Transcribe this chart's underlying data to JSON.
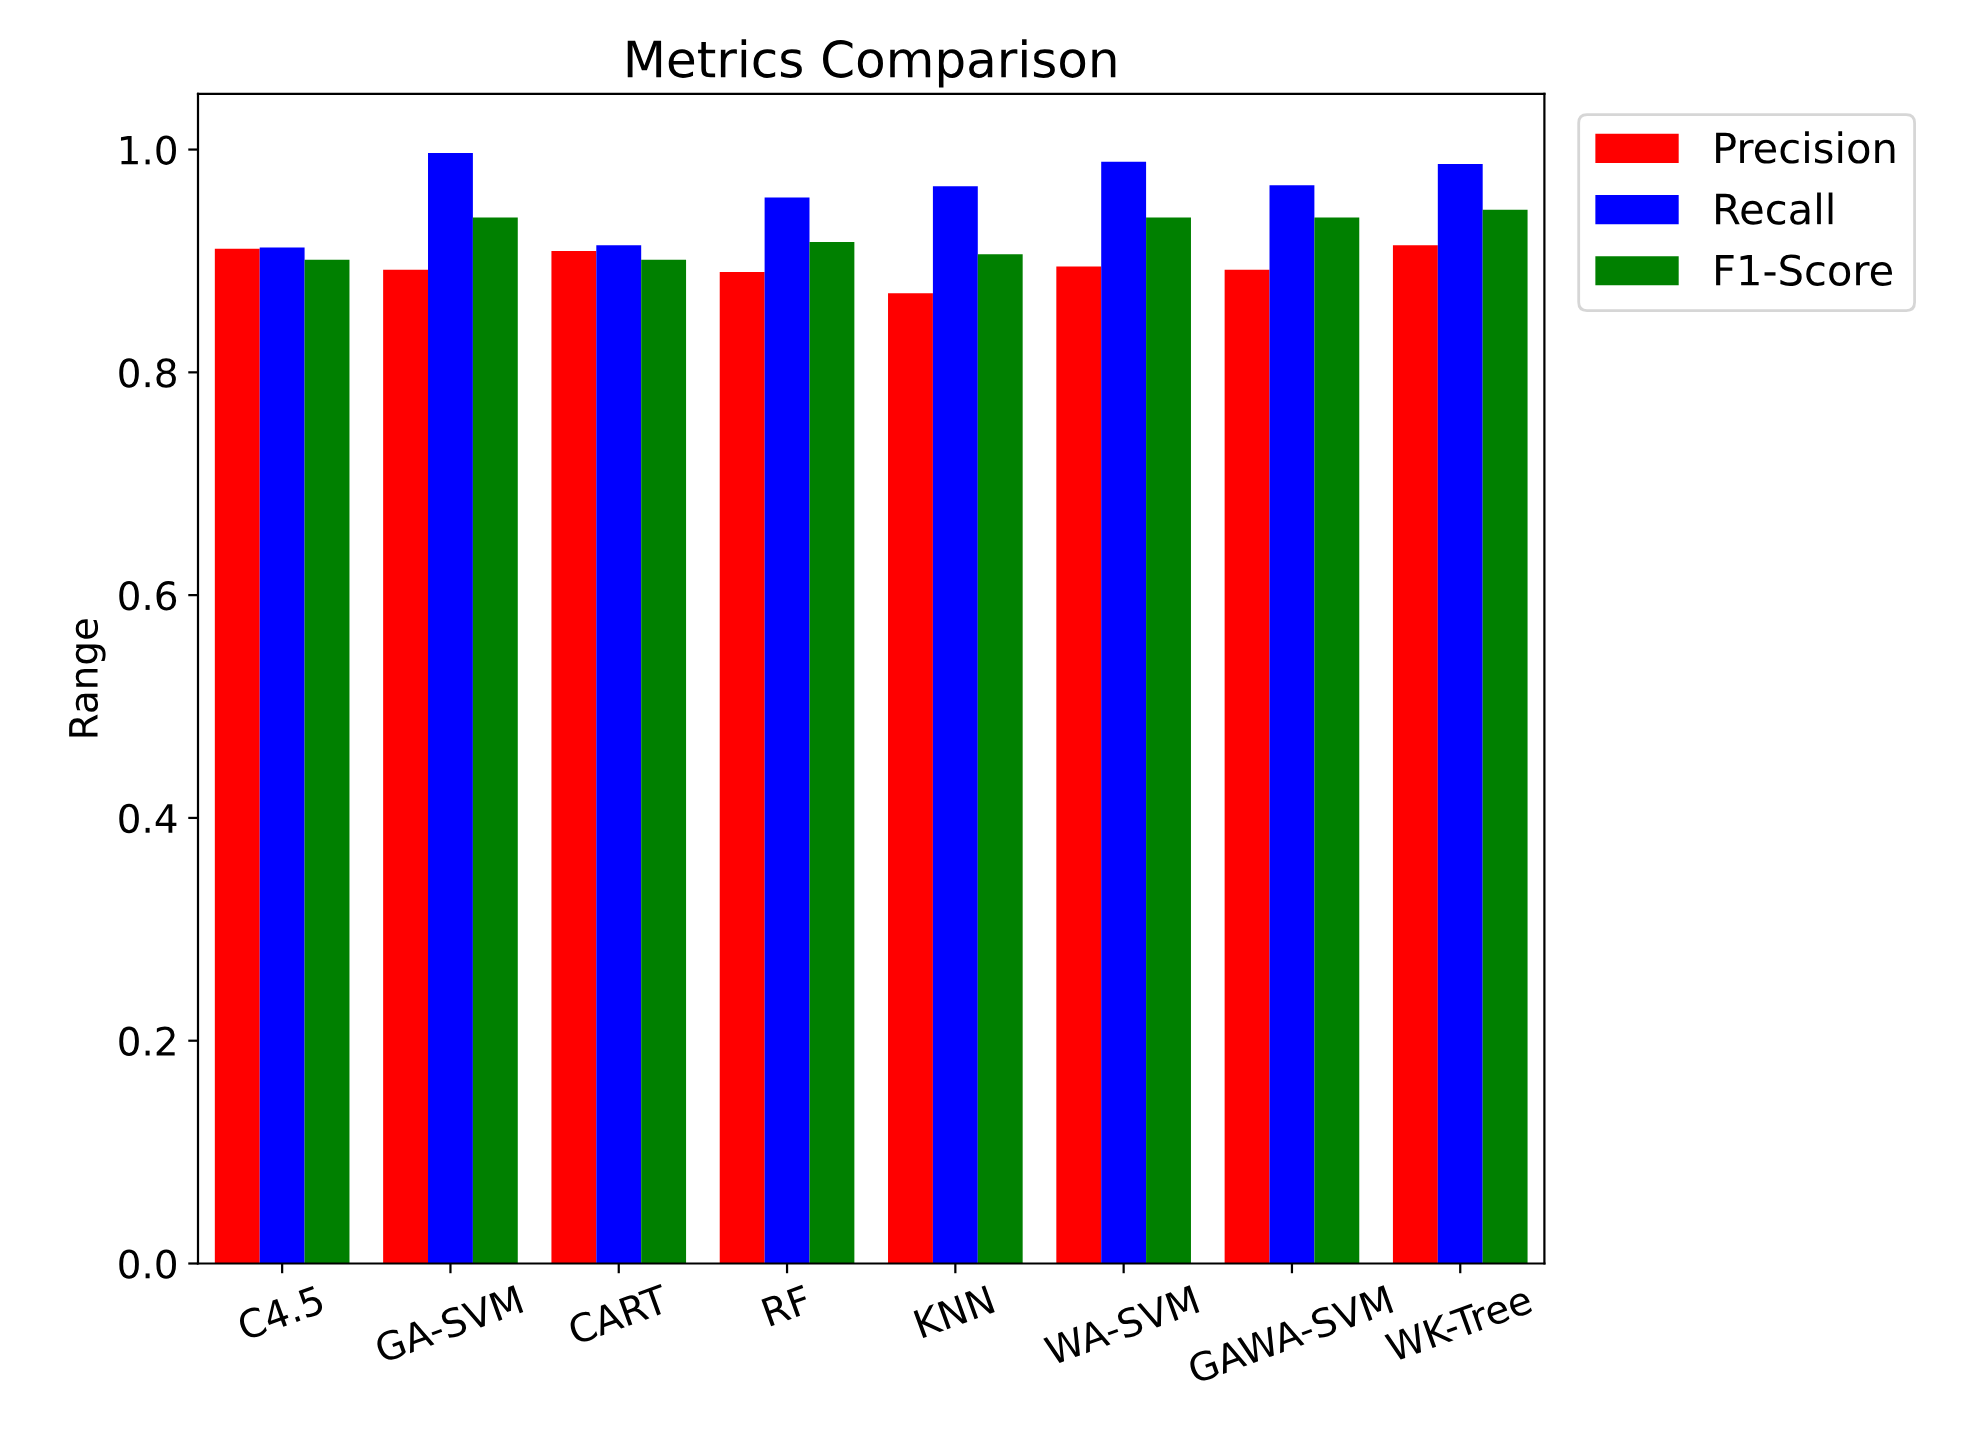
{
  "chart_data": {
    "type": "bar",
    "title": "Metrics Comparison",
    "ylabel": "Range",
    "categories": [
      "C4.5",
      "GA-SVM",
      "CART",
      "RF",
      "KNN",
      "WA-SVM",
      "GAWA-SVM",
      "WK-Tree"
    ],
    "series": [
      {
        "name": "Precision",
        "color": "#ff0000",
        "values": [
          0.911,
          0.892,
          0.909,
          0.89,
          0.871,
          0.895,
          0.892,
          0.914
        ]
      },
      {
        "name": "Recall",
        "color": "#0000ff",
        "values": [
          0.912,
          0.997,
          0.914,
          0.957,
          0.967,
          0.989,
          0.968,
          0.987
        ]
      },
      {
        "name": "F1-Score",
        "color": "#008000",
        "values": [
          0.901,
          0.939,
          0.901,
          0.917,
          0.906,
          0.939,
          0.939,
          0.946
        ]
      }
    ],
    "ylim": [
      0,
      1.05
    ],
    "yticks": [
      {
        "value": 0,
        "label": "0.0"
      },
      {
        "value": 0.2,
        "label": "0.2"
      },
      {
        "value": 0.4,
        "label": "0.4"
      },
      {
        "value": 0.6,
        "label": "0.6"
      },
      {
        "value": 0.8,
        "label": "0.8"
      },
      {
        "value": 1.0,
        "label": "1.0"
      }
    ],
    "legend": "top right"
  }
}
